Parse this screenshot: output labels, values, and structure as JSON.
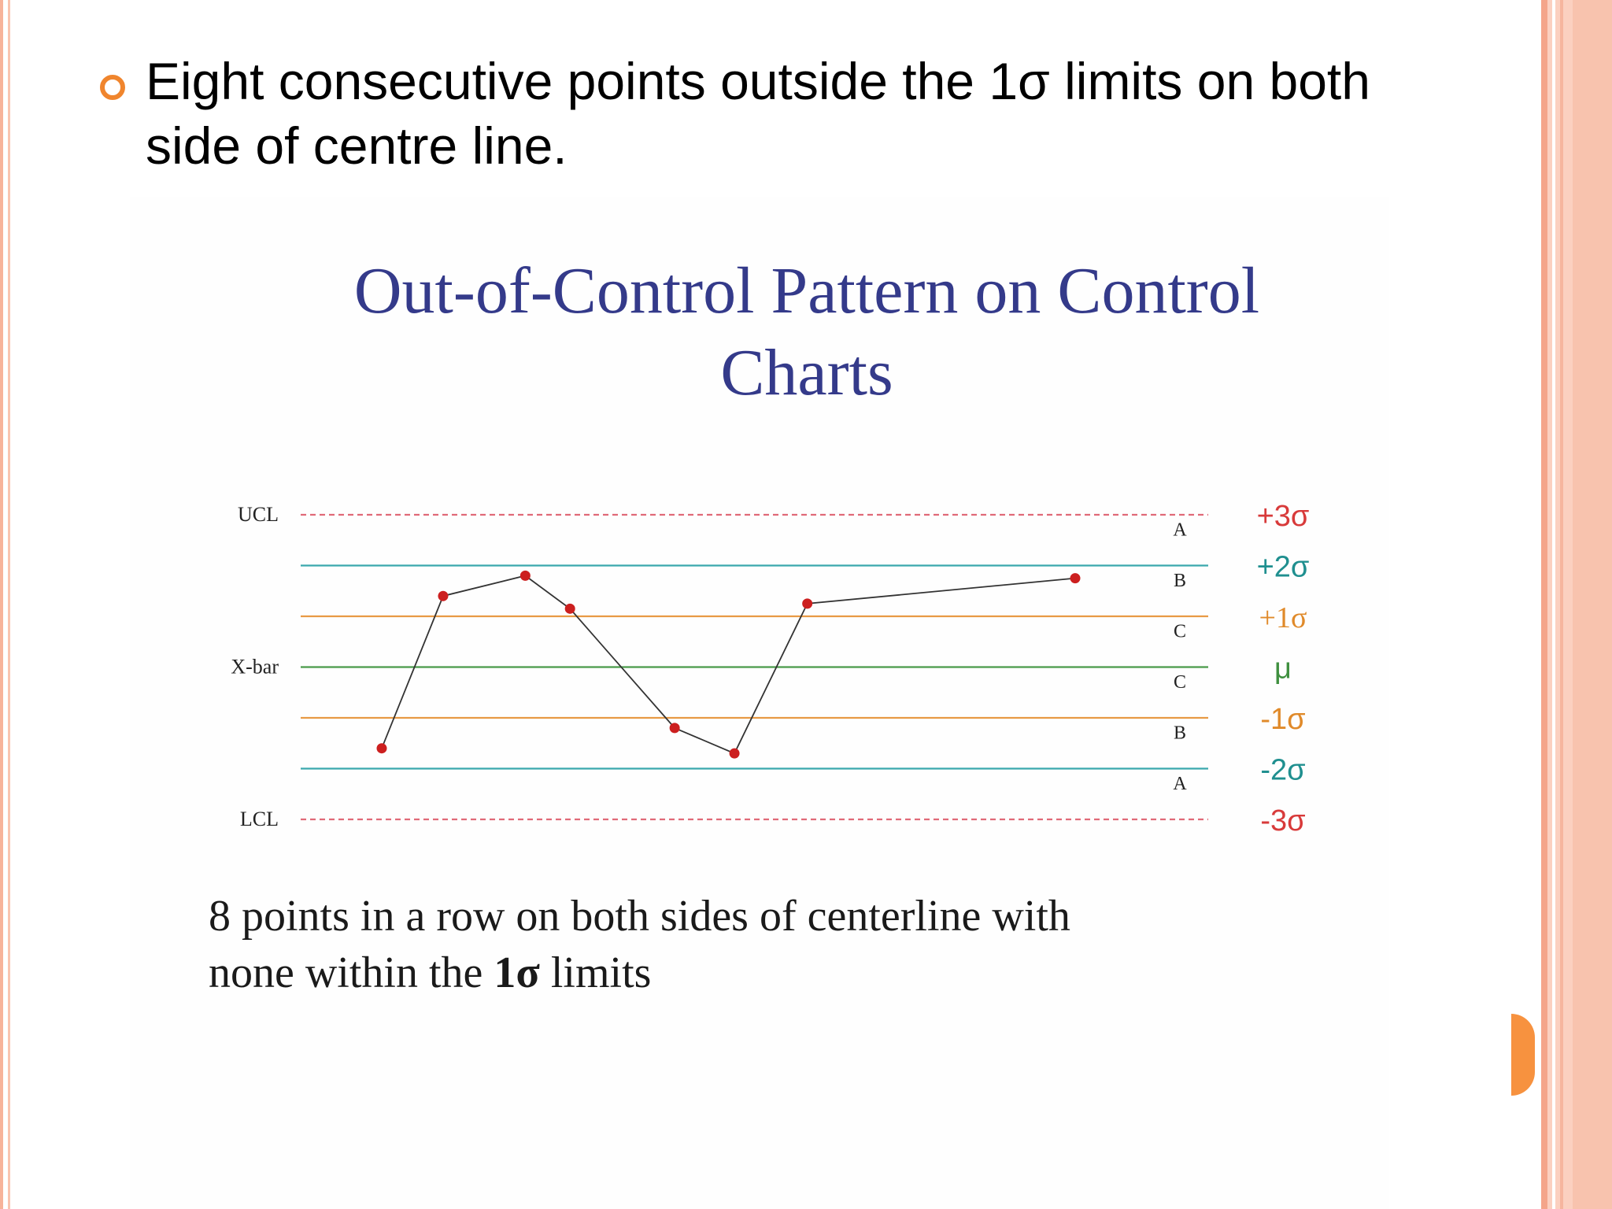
{
  "bullet": {
    "text_line1": "Eight consecutive points outside the 1σ limits on both",
    "text_line2": "side of centre line."
  },
  "chart_title": {
    "line1": "Out-of-Control Pattern on Control",
    "line2": "Charts"
  },
  "caption": {
    "line1": "8 points in a row on both sides of centerline with",
    "line2_start": "none within the ",
    "line2_bold": "1σ",
    "line2_end": " limits"
  },
  "colors": {
    "bullet": "#f0852d",
    "title": "#343a8a",
    "limit_3sigma": "#e06a78",
    "limit_2sigma": "#3aa8ad",
    "limit_1sigma": "#e89a45",
    "center": "#4a9a4a",
    "point": "#cc1f1f",
    "line": "#333333",
    "sigma3_label": "#d83a3a",
    "sigma2_label": "#1f8f8f",
    "sigma1_label": "#e08a2a",
    "mu_label": "#3f8f3f"
  },
  "chart_data": {
    "type": "line",
    "ylim": [
      -3,
      3
    ],
    "limits": [
      {
        "value": 3,
        "left_label": "UCL",
        "right_label": "+3σ",
        "style": "dashed",
        "color_key": "limit_3sigma",
        "label_color_key": "sigma3_label"
      },
      {
        "value": 2,
        "left_label": "",
        "right_label": "+2σ",
        "style": "solid",
        "color_key": "limit_2sigma",
        "label_color_key": "sigma2_label"
      },
      {
        "value": 1,
        "left_label": "",
        "right_label": "+1σ",
        "style": "solid",
        "color_key": "limit_1sigma",
        "label_color_key": "sigma1_label"
      },
      {
        "value": 0,
        "left_label": "X-bar",
        "right_label": "μ",
        "style": "solid",
        "color_key": "center",
        "label_color_key": "mu_label"
      },
      {
        "value": -1,
        "left_label": "",
        "right_label": "-1σ",
        "style": "solid",
        "color_key": "limit_1sigma",
        "label_color_key": "sigma1_label"
      },
      {
        "value": -2,
        "left_label": "",
        "right_label": "-2σ",
        "style": "solid",
        "color_key": "limit_2sigma",
        "label_color_key": "sigma2_label"
      },
      {
        "value": -3,
        "left_label": "LCL",
        "right_label": "-3σ",
        "style": "dashed",
        "color_key": "limit_3sigma",
        "label_color_key": "sigma3_label"
      }
    ],
    "zones": [
      {
        "label": "A",
        "value": 2.5
      },
      {
        "label": "B",
        "value": 1.5
      },
      {
        "label": "C",
        "value": 0.5
      },
      {
        "label": "C",
        "value": -0.5
      },
      {
        "label": "B",
        "value": -1.5
      },
      {
        "label": "A",
        "value": -2.5
      }
    ],
    "x": [
      1,
      2,
      3,
      4,
      5,
      6,
      7,
      8
    ],
    "values": [
      -1.6,
      1.4,
      1.8,
      1.15,
      -1.2,
      -1.7,
      1.25,
      1.75
    ]
  }
}
